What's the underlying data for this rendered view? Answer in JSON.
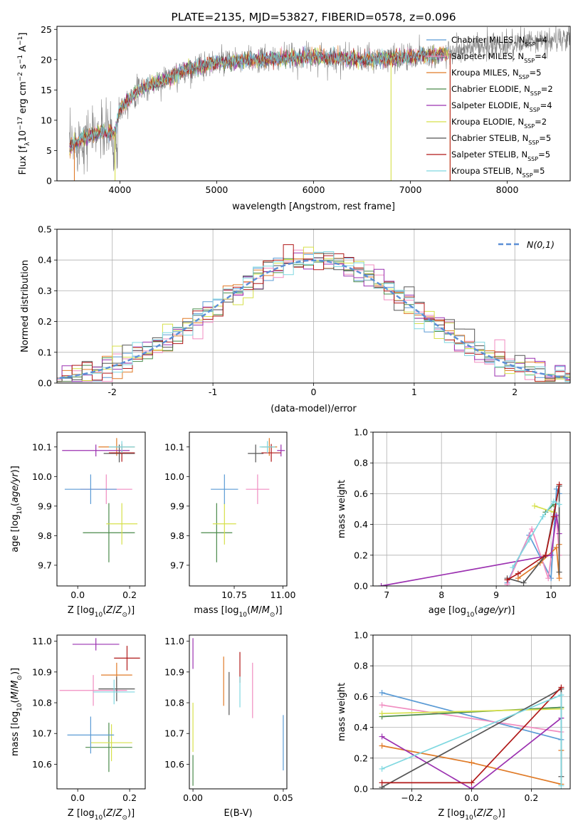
{
  "colors": {
    "chabrier_miles": "#5b9bd5",
    "salpeter_miles": "#f08cc0",
    "kroupa_miles": "#e07b28",
    "chabrier_elodie": "#4a8a4a",
    "salpeter_elodie": "#9b30b0",
    "kroupa_elodie": "#d6e04a",
    "chabrier_stelib": "#555555",
    "salpeter_stelib": "#b01818",
    "kroupa_stelib": "#7fd8e0",
    "spectrum_gray": "#808080"
  },
  "chart_data": [
    {
      "id": "spectrum",
      "type": "line",
      "title": "PLATE=2135, MJD=53827, FIBERID=0578, z=0.096",
      "xlabel": "wavelength [Angstrom, rest frame]",
      "ylabel": "Flux [f_λ 10^-17 erg cm^-2 s^-1 A^-1]",
      "xlim": [
        3350,
        8650
      ],
      "ylim": [
        0,
        25.5
      ],
      "xticks": [
        4000,
        5000,
        6000,
        7000,
        8000
      ],
      "yticks": [
        0,
        5,
        10,
        15,
        20,
        25
      ],
      "x_range_data": [
        3480,
        8650
      ],
      "spectrum_anchors": [
        [
          3480,
          5.5
        ],
        [
          3600,
          7
        ],
        [
          3800,
          8
        ],
        [
          3950,
          8
        ],
        [
          4000,
          12
        ],
        [
          4200,
          15
        ],
        [
          4500,
          17
        ],
        [
          4700,
          18.5
        ],
        [
          5000,
          19.5
        ],
        [
          5500,
          20
        ],
        [
          6000,
          20.5
        ],
        [
          6500,
          20
        ],
        [
          7000,
          20.5
        ],
        [
          7400,
          21
        ],
        [
          7700,
          22
        ],
        [
          8000,
          22.5
        ],
        [
          8650,
          23.5
        ]
      ],
      "legend_position": "top-right",
      "series": [
        {
          "name": "Chabrier MILES, N_SSP=4",
          "color_key": "chabrier_miles"
        },
        {
          "name": "Salpeter MILES, N_SSP=4",
          "color_key": "salpeter_miles"
        },
        {
          "name": "Kroupa MILES, N_SSP=5",
          "color_key": "kroupa_miles"
        },
        {
          "name": "Chabrier ELODIE, N_SSP=2",
          "color_key": "chabrier_elodie"
        },
        {
          "name": "Salpeter ELODIE, N_SSP=4",
          "color_key": "salpeter_elodie"
        },
        {
          "name": "Kroupa ELODIE, N_SSP=2",
          "color_key": "kroupa_elodie"
        },
        {
          "name": "Chabrier STELIB, N_SSP=5",
          "color_key": "chabrier_stelib"
        },
        {
          "name": "Salpeter STELIB, N_SSP=5",
          "color_key": "salpeter_stelib"
        },
        {
          "name": "Kroupa STELIB, N_SSP=5",
          "color_key": "kroupa_stelib"
        }
      ]
    },
    {
      "id": "residuals",
      "type": "area",
      "xlabel": "(data-model)/error",
      "ylabel": "Normed distribution",
      "xlim": [
        -2.55,
        2.55
      ],
      "ylim": [
        0,
        0.5
      ],
      "xticks": [
        -2,
        -1,
        0,
        1,
        2
      ],
      "yticks": [
        0.0,
        0.1,
        0.2,
        0.3,
        0.4,
        0.5
      ],
      "grid": true,
      "bin_width": 0.1,
      "legend_position": "top-right",
      "gaussian_label": "N(0,1)",
      "gaussian_color": "#5b8fd6"
    },
    {
      "id": "age_vs_z",
      "type": "scatter",
      "xlabel": "Z [log10(Z/Z⊙)]",
      "ylabel": "age [log10(age/yr)]",
      "xlim": [
        -0.08,
        0.26
      ],
      "ylim": [
        9.63,
        10.15
      ],
      "xticks": [
        0.0,
        0.2
      ],
      "yticks": [
        9.7,
        9.8,
        9.9,
        10.0,
        10.1
      ],
      "points": [
        {
          "x": 0.11,
          "y": 9.957,
          "xerr": 0.1,
          "yerr": 0.05,
          "color_key": "salpeter_miles"
        },
        {
          "x": 0.15,
          "y": 10.1,
          "xerr": 0.07,
          "yerr": 0.03,
          "color_key": "kroupa_miles"
        },
        {
          "x": 0.12,
          "y": 9.81,
          "xerr": 0.1,
          "yerr": 0.1,
          "color_key": "chabrier_elodie"
        },
        {
          "x": 0.07,
          "y": 10.088,
          "xerr": 0.13,
          "yerr": 0.02,
          "color_key": "salpeter_elodie"
        },
        {
          "x": 0.17,
          "y": 9.84,
          "xerr": 0.06,
          "yerr": 0.07,
          "color_key": "kroupa_elodie"
        },
        {
          "x": 0.16,
          "y": 10.078,
          "xerr": 0.06,
          "yerr": 0.03,
          "color_key": "chabrier_stelib"
        },
        {
          "x": 0.17,
          "y": 10.08,
          "xerr": 0.05,
          "yerr": 0.03,
          "color_key": "salpeter_stelib"
        },
        {
          "x": 0.17,
          "y": 10.1,
          "xerr": 0.05,
          "yerr": 0.02,
          "color_key": "kroupa_stelib"
        },
        {
          "x": 0.05,
          "y": 9.957,
          "xerr": 0.1,
          "yerr": 0.05,
          "color_key": "chabrier_miles"
        }
      ]
    },
    {
      "id": "age_vs_mass",
      "type": "scatter",
      "xlabel": "mass [log10(M/M⊙)]",
      "xlim": [
        10.52,
        11.02
      ],
      "ylim": [
        9.63,
        10.15
      ],
      "xticks": [
        10.75,
        11.0
      ],
      "yticks": [
        9.7,
        9.8,
        9.9,
        10.0,
        10.1
      ],
      "points": [
        {
          "x": 10.87,
          "y": 9.957,
          "xerr": 0.06,
          "yerr": 0.05,
          "color_key": "salpeter_miles"
        },
        {
          "x": 10.93,
          "y": 10.1,
          "xerr": 0.04,
          "yerr": 0.03,
          "color_key": "kroupa_miles"
        },
        {
          "x": 10.66,
          "y": 9.81,
          "xerr": 0.08,
          "yerr": 0.1,
          "color_key": "chabrier_elodie"
        },
        {
          "x": 10.99,
          "y": 10.088,
          "xerr": 0.02,
          "yerr": 0.02,
          "color_key": "salpeter_elodie"
        },
        {
          "x": 10.7,
          "y": 9.84,
          "xerr": 0.06,
          "yerr": 0.07,
          "color_key": "kroupa_elodie"
        },
        {
          "x": 10.86,
          "y": 10.078,
          "xerr": 0.04,
          "yerr": 0.03,
          "color_key": "chabrier_stelib"
        },
        {
          "x": 10.94,
          "y": 10.08,
          "xerr": 0.05,
          "yerr": 0.03,
          "color_key": "salpeter_stelib"
        },
        {
          "x": 10.92,
          "y": 10.1,
          "xerr": 0.04,
          "yerr": 0.02,
          "color_key": "kroupa_stelib"
        },
        {
          "x": 10.7,
          "y": 9.957,
          "xerr": 0.07,
          "yerr": 0.05,
          "color_key": "chabrier_miles"
        }
      ]
    },
    {
      "id": "weight_vs_age",
      "type": "line",
      "xlabel": "age [log10(age/yr)]",
      "ylabel": "mass weight",
      "xlim": [
        6.75,
        10.35
      ],
      "ylim": [
        0,
        1
      ],
      "xticks": [
        7,
        8,
        9,
        10
      ],
      "yticks": [
        0.0,
        0.2,
        0.4,
        0.6,
        0.8,
        1.0
      ],
      "grid": true,
      "series": [
        {
          "color_key": "chabrier_miles",
          "points": [
            [
              9.2,
              0.02
            ],
            [
              9.6,
              0.33
            ],
            [
              10.0,
              0.05
            ],
            [
              10.1,
              0.63
            ],
            [
              10.15,
              0.6
            ]
          ]
        },
        {
          "color_key": "salpeter_miles",
          "points": [
            [
              9.2,
              0.01
            ],
            [
              9.65,
              0.37
            ],
            [
              9.95,
              0.05
            ],
            [
              10.1,
              0.45
            ],
            [
              10.15,
              0.2
            ]
          ]
        },
        {
          "color_key": "kroupa_miles",
          "points": [
            [
              9.4,
              0.05
            ],
            [
              9.8,
              0.15
            ],
            [
              10.1,
              0.25
            ],
            [
              10.15,
              0.05
            ],
            [
              10.15,
              0.27
            ]
          ]
        },
        {
          "color_key": "chabrier_elodie",
          "points": [
            [
              9.9,
              0.48
            ],
            [
              10.05,
              0.53
            ]
          ]
        },
        {
          "color_key": "salpeter_elodie",
          "points": [
            [
              6.9,
              0.0
            ],
            [
              10.0,
              0.2
            ],
            [
              10.1,
              0.46
            ],
            [
              10.15,
              0.34
            ]
          ]
        },
        {
          "color_key": "kroupa_elodie",
          "points": [
            [
              9.7,
              0.52
            ],
            [
              10.05,
              0.48
            ]
          ]
        },
        {
          "color_key": "chabrier_stelib",
          "points": [
            [
              9.2,
              0.05
            ],
            [
              9.5,
              0.02
            ],
            [
              9.9,
              0.2
            ],
            [
              10.15,
              0.65
            ],
            [
              10.15,
              0.09
            ]
          ]
        },
        {
          "color_key": "salpeter_stelib",
          "points": [
            [
              9.2,
              0.04
            ],
            [
              9.4,
              0.08
            ],
            [
              9.9,
              0.2
            ],
            [
              10.05,
              0.45
            ],
            [
              10.15,
              0.66
            ]
          ]
        },
        {
          "color_key": "kroupa_stelib",
          "points": [
            [
              9.3,
              0.12
            ],
            [
              9.6,
              0.3
            ],
            [
              9.85,
              0.45
            ],
            [
              10.05,
              0.55
            ],
            [
              10.15,
              0.53
            ]
          ]
        }
      ]
    },
    {
      "id": "mass_vs_z",
      "type": "scatter",
      "xlabel": "Z [log10(Z/Z⊙)]",
      "ylabel": "mass [log10(M/M⊙)]",
      "xlim": [
        -0.08,
        0.26
      ],
      "ylim": [
        10.52,
        11.02
      ],
      "xticks": [
        0.0,
        0.2
      ],
      "yticks": [
        10.6,
        10.7,
        10.8,
        10.9,
        11.0
      ],
      "points": [
        {
          "x": 0.06,
          "y": 10.84,
          "xerr": 0.13,
          "yerr": 0.05,
          "color_key": "salpeter_miles"
        },
        {
          "x": 0.15,
          "y": 10.89,
          "xerr": 0.06,
          "yerr": 0.04,
          "color_key": "kroupa_miles"
        },
        {
          "x": 0.12,
          "y": 10.655,
          "xerr": 0.09,
          "yerr": 0.08,
          "color_key": "chabrier_elodie"
        },
        {
          "x": 0.07,
          "y": 10.99,
          "xerr": 0.09,
          "yerr": 0.02,
          "color_key": "salpeter_elodie"
        },
        {
          "x": 0.13,
          "y": 10.67,
          "xerr": 0.08,
          "yerr": 0.06,
          "color_key": "kroupa_elodie"
        },
        {
          "x": 0.15,
          "y": 10.845,
          "xerr": 0.07,
          "yerr": 0.04,
          "color_key": "chabrier_stelib"
        },
        {
          "x": 0.19,
          "y": 10.945,
          "xerr": 0.05,
          "yerr": 0.04,
          "color_key": "salpeter_stelib"
        },
        {
          "x": 0.14,
          "y": 10.835,
          "xerr": 0.08,
          "yerr": 0.04,
          "color_key": "kroupa_stelib"
        },
        {
          "x": 0.05,
          "y": 10.695,
          "xerr": 0.09,
          "yerr": 0.06,
          "color_key": "chabrier_miles"
        }
      ]
    },
    {
      "id": "mass_vs_ebv",
      "type": "scatter",
      "xlabel": "E(B-V)",
      "xlim": [
        -0.002,
        0.052
      ],
      "ylim": [
        10.52,
        11.02
      ],
      "xticks": [
        0.0,
        0.05
      ],
      "yticks": [
        10.6,
        10.7,
        10.8,
        10.9,
        11.0
      ],
      "points": [
        {
          "x": 0.033,
          "y": 10.84,
          "xerr": 0,
          "yerr": 0.09,
          "color_key": "salpeter_miles"
        },
        {
          "x": 0.017,
          "y": 10.87,
          "xerr": 0,
          "yerr": 0.08,
          "color_key": "kroupa_miles"
        },
        {
          "x": 0.0,
          "y": 10.58,
          "xerr": 0,
          "yerr": 0.05,
          "color_key": "chabrier_elodie"
        },
        {
          "x": 0.0,
          "y": 10.96,
          "xerr": 0,
          "yerr": 0.05,
          "color_key": "salpeter_elodie"
        },
        {
          "x": 0.0,
          "y": 10.72,
          "xerr": 0,
          "yerr": 0.08,
          "color_key": "kroupa_elodie"
        },
        {
          "x": 0.02,
          "y": 10.83,
          "xerr": 0,
          "yerr": 0.07,
          "color_key": "chabrier_stelib"
        },
        {
          "x": 0.026,
          "y": 10.915,
          "xerr": 0,
          "yerr": 0.05,
          "color_key": "salpeter_stelib"
        },
        {
          "x": 0.026,
          "y": 10.835,
          "xerr": 0,
          "yerr": 0.05,
          "color_key": "kroupa_stelib"
        },
        {
          "x": 0.05,
          "y": 10.67,
          "xerr": 0,
          "yerr": 0.09,
          "color_key": "chabrier_miles"
        }
      ]
    },
    {
      "id": "weight_vs_z",
      "type": "line",
      "xlabel": "Z [log10(Z/Z⊙)]",
      "ylabel": "mass weight",
      "xlim": [
        -0.33,
        0.33
      ],
      "ylim": [
        0,
        1
      ],
      "xticks": [
        -0.2,
        0.0,
        0.2
      ],
      "yticks": [
        0.0,
        0.2,
        0.4,
        0.6,
        0.8,
        1.0
      ],
      "grid": true,
      "series": [
        {
          "color_key": "chabrier_miles",
          "points": [
            [
              -0.3,
              0.625
            ],
            [
              0.3,
              0.32
            ]
          ]
        },
        {
          "color_key": "salpeter_miles",
          "points": [
            [
              -0.3,
              0.545
            ],
            [
              0.3,
              0.37
            ]
          ]
        },
        {
          "color_key": "kroupa_miles",
          "points": [
            [
              -0.3,
              0.28
            ],
            [
              0.0,
              0.17
            ],
            [
              0.3,
              0.03
            ],
            [
              0.3,
              0.25
            ]
          ]
        },
        {
          "color_key": "chabrier_elodie",
          "points": [
            [
              -0.3,
              0.47
            ],
            [
              0.3,
              0.53
            ]
          ]
        },
        {
          "color_key": "salpeter_elodie",
          "points": [
            [
              -0.3,
              0.34
            ],
            [
              0.0,
              0.0
            ],
            [
              0.3,
              0.46
            ]
          ]
        },
        {
          "color_key": "kroupa_elodie",
          "points": [
            [
              -0.3,
              0.49
            ],
            [
              0.3,
              0.52
            ]
          ]
        },
        {
          "color_key": "chabrier_stelib",
          "points": [
            [
              -0.3,
              0.01
            ],
            [
              0.3,
              0.65
            ],
            [
              0.3,
              0.08
            ]
          ]
        },
        {
          "color_key": "salpeter_stelib",
          "points": [
            [
              -0.3,
              0.04
            ],
            [
              0.0,
              0.04
            ],
            [
              0.3,
              0.66
            ]
          ]
        },
        {
          "color_key": "kroupa_stelib",
          "points": [
            [
              -0.3,
              0.13
            ],
            [
              0.3,
              0.61
            ],
            [
              0.3,
              0.02
            ]
          ]
        }
      ]
    }
  ]
}
